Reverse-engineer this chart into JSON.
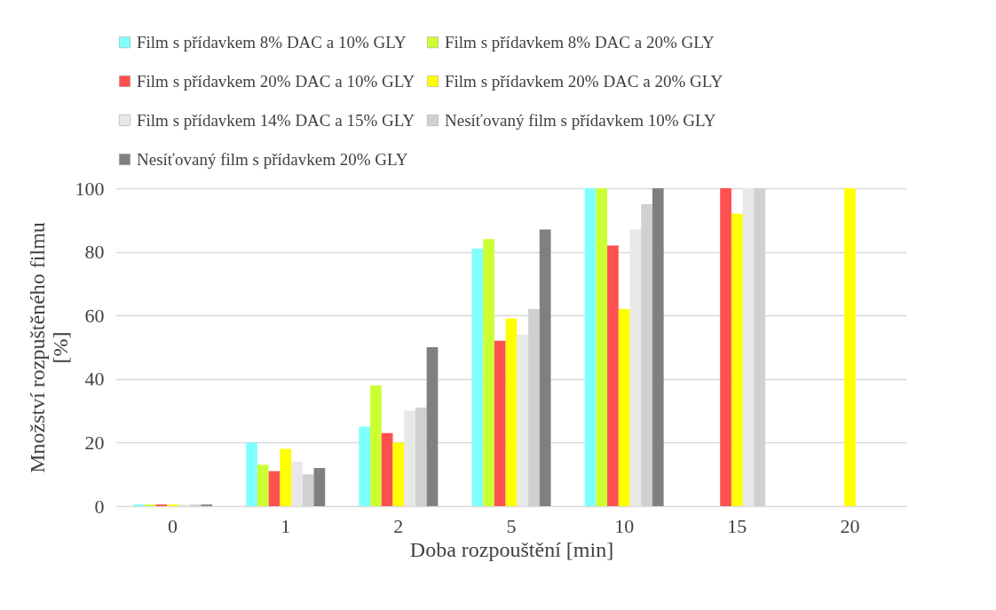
{
  "chart_data": {
    "type": "bar",
    "xlabel": "Doba rozpouštění [min]",
    "ylabel": "Množství rozpuštěného filmu\n[%]",
    "categories": [
      "0",
      "1",
      "2",
      "5",
      "10",
      "15",
      "20"
    ],
    "series": [
      {
        "name": "Film s přídavkem 8% DAC a 10% GLY",
        "color": "#80ffff",
        "values": [
          0.5,
          20,
          25,
          81,
          100,
          null,
          null
        ]
      },
      {
        "name": "Film s přídavkem 8% DAC a 20% GLY",
        "color": "#ccff33",
        "values": [
          0.5,
          13,
          38,
          84,
          100,
          null,
          null
        ]
      },
      {
        "name": "Film s přídavkem 20% DAC a 10% GLY",
        "color": "#ff5050",
        "values": [
          0.5,
          11,
          23,
          52,
          82,
          100,
          null
        ]
      },
      {
        "name": "Film s přídavkem 20% DAC a 20% GLY",
        "color": "#ffff00",
        "values": [
          0.5,
          18,
          20,
          59,
          62,
          92,
          100
        ]
      },
      {
        "name": "Film s přídavkem 14% DAC a 15% GLY",
        "color": "#e8e8e8",
        "values": [
          0.5,
          14,
          30,
          54,
          87,
          100,
          null
        ]
      },
      {
        "name": "Nesíťovaný  film s přídavkem 10% GLY",
        "color": "#d0d0d0",
        "values": [
          0.5,
          10,
          31,
          62,
          95,
          100,
          null
        ]
      },
      {
        "name": "Nesíťovaný  film s přídavkem 20% GLY",
        "color": "#808080",
        "values": [
          0.5,
          12,
          50,
          87,
          100,
          null,
          null
        ]
      }
    ],
    "ylim": [
      0,
      100
    ],
    "yticks": [
      0,
      20,
      40,
      60,
      80,
      100
    ],
    "grid": "y",
    "legend": "top"
  }
}
